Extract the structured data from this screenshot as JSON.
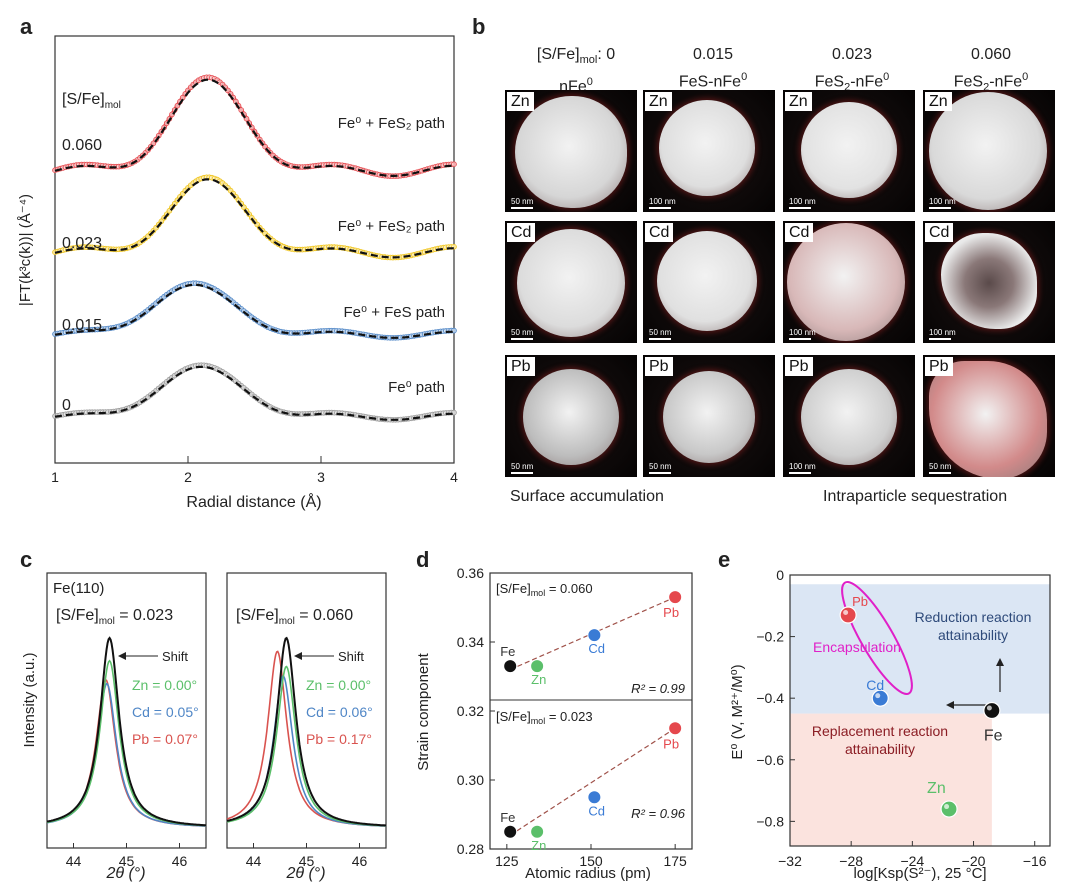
{
  "panel_labels": {
    "a": "a",
    "b": "b",
    "c": "c",
    "d": "d",
    "e": "e"
  },
  "chart_data": [
    {
      "id": "a",
      "type": "line",
      "title": "",
      "xlabel": "Radial distance (Å)",
      "ylabel": "|FT(k³c(k))| (Å⁻⁴)",
      "xlim": [
        1,
        4
      ],
      "xticks": [
        1,
        2,
        3,
        4
      ],
      "legend_title": "[S/Fe]mol",
      "legend_title_main": "[S/Fe]",
      "legend_title_sub": "mol",
      "series": [
        {
          "label": "0.060",
          "path_label": "Fe⁰ + FeS₂ path",
          "color": "#e5484d",
          "offset": 3,
          "amp": 1.55,
          "peak": 2.15,
          "width": 0.38,
          "ripple": 0.1
        },
        {
          "label": "0.023",
          "path_label": "Fe⁰ + FeS₂ path",
          "color": "#f0c419",
          "offset": 2,
          "amp": 1.25,
          "peak": 2.15,
          "width": 0.38,
          "ripple": 0.09
        },
        {
          "label": "0.015",
          "path_label": "Fe⁰ + FeS path",
          "color": "#4f86c6",
          "offset": 1,
          "amp": 0.85,
          "peak": 2.05,
          "width": 0.42,
          "ripple": 0.06
        },
        {
          "label": "0",
          "path_label": "Fe⁰ path",
          "color": "#9a9a9a",
          "offset": 0,
          "amp": 0.85,
          "peak": 2.1,
          "width": 0.42,
          "ripple": 0.06
        }
      ]
    },
    {
      "id": "c",
      "type": "line",
      "xlabel": "2θ (°)",
      "ylabel": "Intensity (a.u.)",
      "xlim": [
        43.5,
        46.5
      ],
      "xticks": [
        44,
        45,
        46
      ],
      "subplots": [
        {
          "title": "[S/Fe]mol = 0.023",
          "title_main": "[S/Fe]",
          "title_sub": "mol",
          "title_value": " = 0.023",
          "reflection": "Fe(110)",
          "shift_label": "Shift",
          "series": [
            {
              "name": "Fe",
              "label": "",
              "center": 44.68,
              "height": 1.0,
              "color": "#111111"
            },
            {
              "name": "Zn",
              "label": "Zn = 0.00°",
              "center": 44.68,
              "height": 0.88,
              "color": "#5bbf6a"
            },
            {
              "name": "Cd",
              "label": "Cd = 0.05°",
              "center": 44.63,
              "height": 0.76,
              "color": "#4f86c6"
            },
            {
              "name": "Pb",
              "label": "Pb = 0.07°",
              "center": 44.61,
              "height": 0.78,
              "color": "#d9534f"
            }
          ]
        },
        {
          "title": "[S/Fe]mol = 0.060",
          "title_main": "[S/Fe]",
          "title_sub": "mol",
          "title_value": " = 0.060",
          "reflection": "",
          "shift_label": "Shift",
          "series": [
            {
              "name": "Fe",
              "label": "",
              "center": 44.62,
              "height": 1.0,
              "color": "#111111"
            },
            {
              "name": "Zn",
              "label": "Zn = 0.00°",
              "center": 44.62,
              "height": 0.85,
              "color": "#5bbf6a"
            },
            {
              "name": "Cd",
              "label": "Cd = 0.06°",
              "center": 44.56,
              "height": 0.8,
              "color": "#4f86c6"
            },
            {
              "name": "Pb",
              "label": "Pb = 0.17°",
              "center": 44.45,
              "height": 0.93,
              "color": "#d9534f"
            }
          ]
        }
      ]
    },
    {
      "id": "d",
      "type": "scatter",
      "xlabel": "Atomic radius (pm)",
      "ylabel": "Strain component",
      "xlim": [
        120,
        180
      ],
      "ylim": [
        0.28,
        0.36
      ],
      "xticks": [
        125,
        150,
        175
      ],
      "yticks": [
        0.28,
        0.3,
        0.32,
        0.34,
        0.36
      ],
      "ytick_labels": [
        "0.28",
        "0.30",
        "0.32",
        "0.34",
        "0.36"
      ],
      "groups": [
        {
          "title": "[S/Fe]mol = 0.060",
          "title_main": "[S/Fe]",
          "title_sub": "mol",
          "title_value": " = 0.060",
          "r2": "R² = 0.99",
          "points": [
            {
              "name": "Fe",
              "x": 126,
              "y": 0.333,
              "color": "#111111"
            },
            {
              "name": "Zn",
              "x": 134,
              "y": 0.333,
              "color": "#5bbf6a"
            },
            {
              "name": "Cd",
              "x": 151,
              "y": 0.342,
              "color": "#3a7bd5"
            },
            {
              "name": "Pb",
              "x": 175,
              "y": 0.353,
              "color": "#e5484d"
            }
          ],
          "fit": [
            [
              126,
              0.332
            ],
            [
              175,
              0.353
            ]
          ]
        },
        {
          "title": "[S/Fe]mol = 0.023",
          "title_main": "[S/Fe]",
          "title_sub": "mol",
          "title_value": " = 0.023",
          "r2": "R² = 0.96",
          "points": [
            {
              "name": "Fe",
              "x": 126,
              "y": 0.285,
              "color": "#111111"
            },
            {
              "name": "Zn",
              "x": 134,
              "y": 0.285,
              "color": "#5bbf6a"
            },
            {
              "name": "Cd",
              "x": 151,
              "y": 0.295,
              "color": "#3a7bd5"
            },
            {
              "name": "Pb",
              "x": 175,
              "y": 0.315,
              "color": "#e5484d"
            }
          ],
          "fit": [
            [
              126,
              0.284
            ],
            [
              175,
              0.315
            ]
          ]
        }
      ]
    },
    {
      "id": "e",
      "type": "scatter",
      "xlabel": "log[Ksp(S²⁻), 25 °C]",
      "ylabel": "E⁰ (V, M²⁺/M⁰)",
      "xlim": [
        -32,
        -15
      ],
      "ylim": [
        -0.88,
        0
      ],
      "xticks": [
        -32,
        -28,
        -24,
        -20,
        -16
      ],
      "xtick_labels": [
        "−32",
        "−28",
        "−24",
        "−20",
        "−16"
      ],
      "yticks": [
        0,
        -0.2,
        -0.4,
        -0.6,
        -0.8
      ],
      "ytick_labels": [
        "0",
        "−0.2",
        "−0.4",
        "−0.6",
        "−0.8"
      ],
      "points": [
        {
          "name": "Pb",
          "x": -28.2,
          "y": -0.13,
          "color": "#e5484d"
        },
        {
          "name": "Cd",
          "x": -26.1,
          "y": -0.4,
          "color": "#3a7bd5"
        },
        {
          "name": "Fe",
          "x": -18.8,
          "y": -0.44,
          "color": "#111111"
        },
        {
          "name": "Zn",
          "x": -21.6,
          "y": -0.76,
          "color": "#5bbf6a"
        }
      ],
      "regions": [
        {
          "name": "reduction",
          "x": [
            -32,
            -15
          ],
          "y": [
            -0.45,
            -0.03
          ],
          "color": "#dbe6f4"
        },
        {
          "name": "replacement",
          "x": [
            -32,
            -18.8
          ],
          "y": [
            -0.88,
            -0.45
          ],
          "color": "#fbe3de"
        }
      ],
      "annotations": {
        "reduction_1": "Reduction reaction",
        "reduction_2": "attainability",
        "replacement_1": "Replacement reaction",
        "replacement_2": "attainability",
        "encapsulation": "Encapsulation"
      },
      "colors": {
        "reduction_text": "#2e4a7a",
        "replacement_text": "#8b1d24",
        "encapsulation": "#e020c8"
      }
    }
  ],
  "panel_b": {
    "columns": [
      {
        "line1": "[S/Fe]mol: 0",
        "line1_main": "[S/Fe]",
        "line1_sub": "mol",
        "line1_val": ": 0",
        "line2_main": "nFe",
        "line2_sup": "0",
        "line2_tail": ""
      },
      {
        "line1": "0.015",
        "line1_main": "0.015",
        "line1_sub": "",
        "line1_val": "",
        "line2_main": "FeS-nFe",
        "line2_sup": "0",
        "line2_tail": ""
      },
      {
        "line1": "0.023",
        "line1_main": "0.023",
        "line1_sub": "",
        "line1_val": "",
        "line2_main": "FeS",
        "line2_sub": "2",
        "line2_sup": "0",
        "line2_tail": "-nFe"
      },
      {
        "line1": "0.060",
        "line1_main": "0.060",
        "line1_sub": "",
        "line1_val": "",
        "line2_main": "FeS",
        "line2_sub": "2",
        "line2_sup": "0",
        "line2_tail": "-nFe"
      }
    ],
    "rows": [
      "Zn",
      "Cd",
      "Pb"
    ],
    "scale_bars": [
      [
        "50 nm",
        "100 nm",
        "100 nm",
        "100 nm"
      ],
      [
        "50 nm",
        "50 nm",
        "100 nm",
        "100 nm"
      ],
      [
        "50 nm",
        "50 nm",
        "100 nm",
        "50 nm"
      ]
    ],
    "captions": {
      "left": "Surface accumulation",
      "right": "Intraparticle sequestration"
    }
  }
}
